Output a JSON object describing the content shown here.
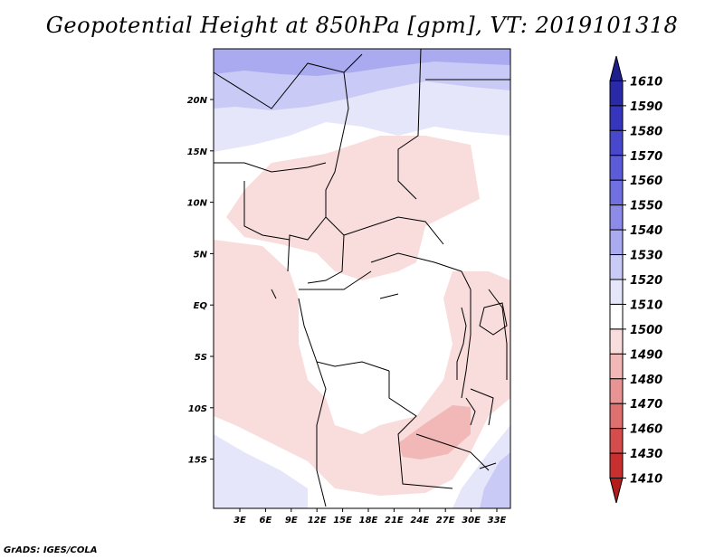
{
  "title": "Geopotential Height at 850hPa [gpm], VT: 2019101318",
  "credit": "GrADS: IGES/COLA",
  "map": {
    "variable": "Geopotential Height",
    "level": "850hPa",
    "units": "gpm",
    "valid_time": "2019101318",
    "lon_ticks": [
      "3E",
      "6E",
      "9E",
      "12E",
      "15E",
      "18E",
      "21E",
      "24E",
      "27E",
      "30E",
      "33E"
    ],
    "lat_ticks": [
      "20N",
      "15N",
      "10N",
      "5N",
      "EQ",
      "5S",
      "10S",
      "15S"
    ],
    "colorbar": {
      "levels": [
        "1610",
        "1590",
        "1580",
        "1570",
        "1560",
        "1550",
        "1540",
        "1530",
        "1520",
        "1510",
        "1500",
        "1490",
        "1480",
        "1470",
        "1460",
        "1430",
        "1410"
      ],
      "colors": [
        "#1e1e8c",
        "#2a2aa8",
        "#3636bd",
        "#4848cc",
        "#5c5cd8",
        "#7070e0",
        "#8c8ce8",
        "#aaaaf0",
        "#cacaf6",
        "#e6e6fb",
        "#ffffff",
        "#f9dcdc",
        "#f2b8b8",
        "#e89494",
        "#de7070",
        "#d44c4c",
        "#c83030",
        "#b41c1c"
      ]
    }
  }
}
